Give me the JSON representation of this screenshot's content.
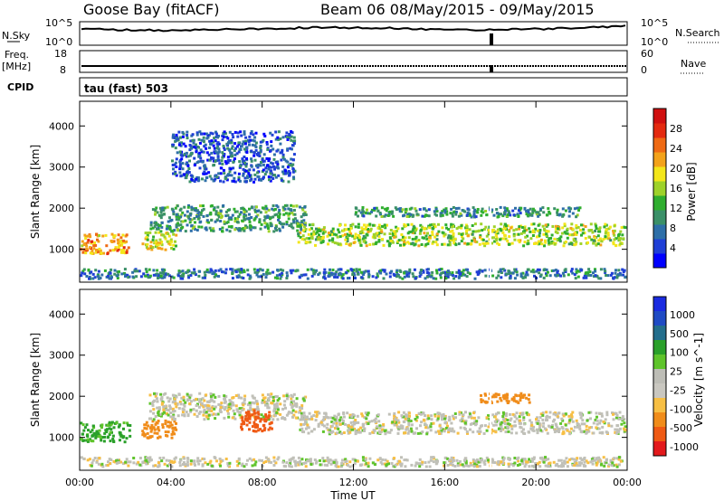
{
  "header": {
    "title": "Goose Bay (fitACF)",
    "beam_date": "Beam 06 08/May/2015 - 09/May/2015"
  },
  "panels": {
    "nsky": {
      "label": "N.Sky",
      "left_ticks": [
        "10^5",
        "10^0"
      ],
      "right_ticks": [
        "10^5",
        "10^0"
      ],
      "right_label": "N.Search"
    },
    "freq": {
      "label_top": "Freq.",
      "label_bottom": "[MHz]",
      "left_ticks": [
        "18",
        "8"
      ],
      "right_ticks": [
        "60",
        "0"
      ],
      "right_label": "Nave"
    },
    "cpid": {
      "label": "CPID",
      "text": "tau (fast) 503"
    }
  },
  "colors": {
    "power_scale": [
      "#0000ff",
      "#1f3fd6",
      "#2e6fa8",
      "#3b9068",
      "#2fae2f",
      "#9ed22a",
      "#f3e61a",
      "#f3a21a",
      "#ef6a14",
      "#e42a10",
      "#d01010"
    ],
    "velocity_scale": [
      "#e31a1c",
      "#ef5a14",
      "#f08c1a",
      "#f7bf44",
      "#c9c7c0",
      "#bdbdb6",
      "#5fc42b",
      "#2aa02a",
      "#236e8c",
      "#1f4bc4",
      "#1a2be0"
    ],
    "gray_background": "#c0c0b8"
  },
  "chart_data": [
    {
      "type": "heatmap",
      "name": "power",
      "ylabel": "Slant Range [km]",
      "ylim": [
        200,
        4600
      ],
      "yticks": [
        1000,
        2000,
        3000,
        4000
      ],
      "xlim": [
        "00:00",
        "24:00"
      ],
      "colorbar": {
        "label": "Power [dB]",
        "ticks": [
          4,
          8,
          12,
          16,
          20,
          24,
          28
        ],
        "range": [
          0,
          32
        ]
      },
      "echo_regions": [
        {
          "t0": 0.0,
          "t1": 2.3,
          "r0": 850,
          "r1": 1400,
          "power": 22
        },
        {
          "t0": 2.7,
          "t1": 4.3,
          "r0": 950,
          "r1": 1450,
          "power": 18
        },
        {
          "t0": 3.0,
          "t1": 10.0,
          "r0": 1400,
          "r1": 2100,
          "power": 11
        },
        {
          "t0": 9.5,
          "t1": 24.0,
          "r0": 1050,
          "r1": 1650,
          "power": 16
        },
        {
          "t0": 12.0,
          "t1": 22.0,
          "r0": 1750,
          "r1": 2050,
          "power": 10
        },
        {
          "t0": 4.0,
          "t1": 9.5,
          "r0": 2600,
          "r1": 3900,
          "power": 6
        },
        {
          "t0": 0.0,
          "t1": 24.0,
          "r0": 250,
          "r1": 550,
          "power": 8
        }
      ]
    },
    {
      "type": "heatmap",
      "name": "velocity",
      "ylabel": "Slant Range [km]",
      "ylim": [
        200,
        4600
      ],
      "yticks": [
        1000,
        2000,
        3000,
        4000
      ],
      "xlim": [
        "00:00",
        "24:00"
      ],
      "xlabel": "Time UT",
      "xticks": [
        "00:00",
        "04:00",
        "08:00",
        "12:00",
        "16:00",
        "20:00",
        "00:00"
      ],
      "colorbar": {
        "label": "Velocity [m s^-1]",
        "ticks": [
          "1000",
          "500",
          "100",
          "25",
          "-25",
          "-100",
          "-500",
          "-1000"
        ]
      },
      "echo_regions": [
        {
          "t0": 0.0,
          "t1": 2.3,
          "r0": 850,
          "r1": 1400,
          "velocity": 120
        },
        {
          "t0": 2.7,
          "t1": 4.3,
          "r0": 950,
          "r1": 1450,
          "velocity": -150
        },
        {
          "t0": 3.0,
          "t1": 10.0,
          "r0": 1400,
          "r1": 2100,
          "velocity": 0
        },
        {
          "t0": 9.5,
          "t1": 24.0,
          "r0": 1050,
          "r1": 1650,
          "velocity": 0
        },
        {
          "t0": 7.0,
          "t1": 8.5,
          "r0": 1100,
          "r1": 1700,
          "velocity": -300
        },
        {
          "t0": 17.5,
          "t1": 20.0,
          "r0": 1800,
          "r1": 2100,
          "velocity": -200
        },
        {
          "t0": 0.0,
          "t1": 24.0,
          "r0": 250,
          "r1": 550,
          "velocity": 0
        }
      ]
    }
  ]
}
